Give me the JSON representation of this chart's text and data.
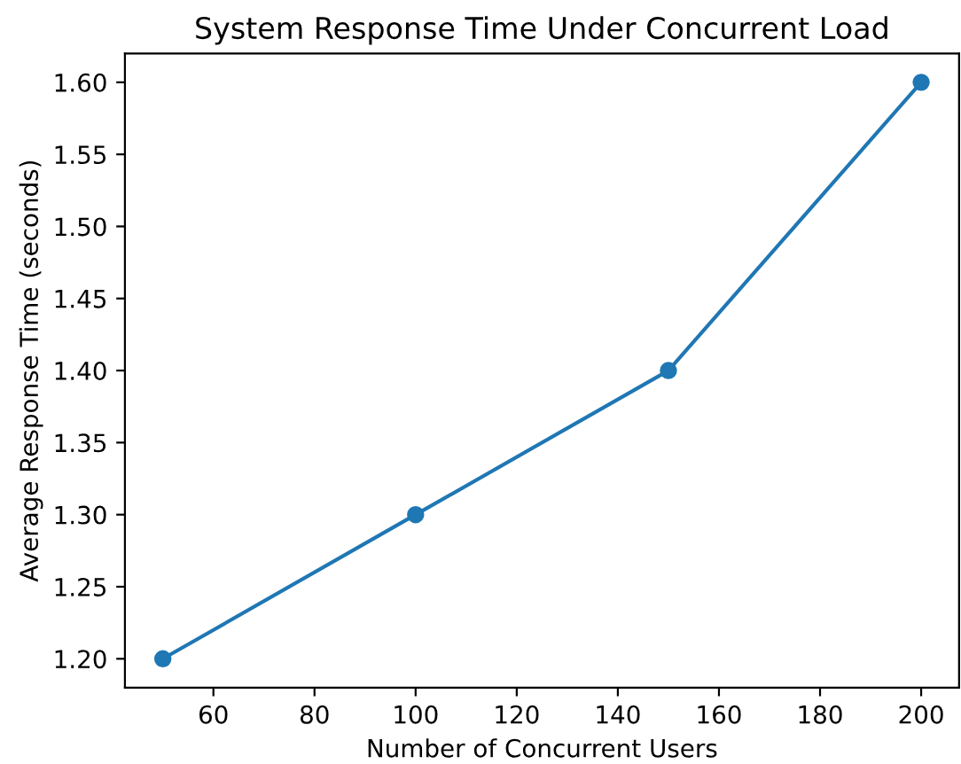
{
  "chart_data": {
    "type": "line",
    "title": "System Response Time Under Concurrent Load",
    "xlabel": "Number of Concurrent Users",
    "ylabel": "Average Response Time (seconds)",
    "x": [
      50,
      100,
      150,
      200
    ],
    "series": [
      {
        "color": "#1f77b4",
        "values": [
          1.2,
          1.3,
          1.4,
          1.6
        ]
      }
    ],
    "marker": "circle",
    "line_style": "solid",
    "grid": false,
    "legend": false,
    "xlim": [
      42.5,
      207.5
    ],
    "ylim": [
      1.18,
      1.62
    ],
    "xticks": [
      60,
      80,
      100,
      120,
      140,
      160,
      180,
      200
    ],
    "yticks": [
      {
        "value": 1.2,
        "label": "1.20"
      },
      {
        "value": 1.25,
        "label": "1.25"
      },
      {
        "value": 1.3,
        "label": "1.30"
      },
      {
        "value": 1.35,
        "label": "1.35"
      },
      {
        "value": 1.4,
        "label": "1.40"
      },
      {
        "value": 1.45,
        "label": "1.45"
      },
      {
        "value": 1.5,
        "label": "1.50"
      },
      {
        "value": 1.55,
        "label": "1.55"
      },
      {
        "value": 1.6,
        "label": "1.60"
      }
    ]
  }
}
